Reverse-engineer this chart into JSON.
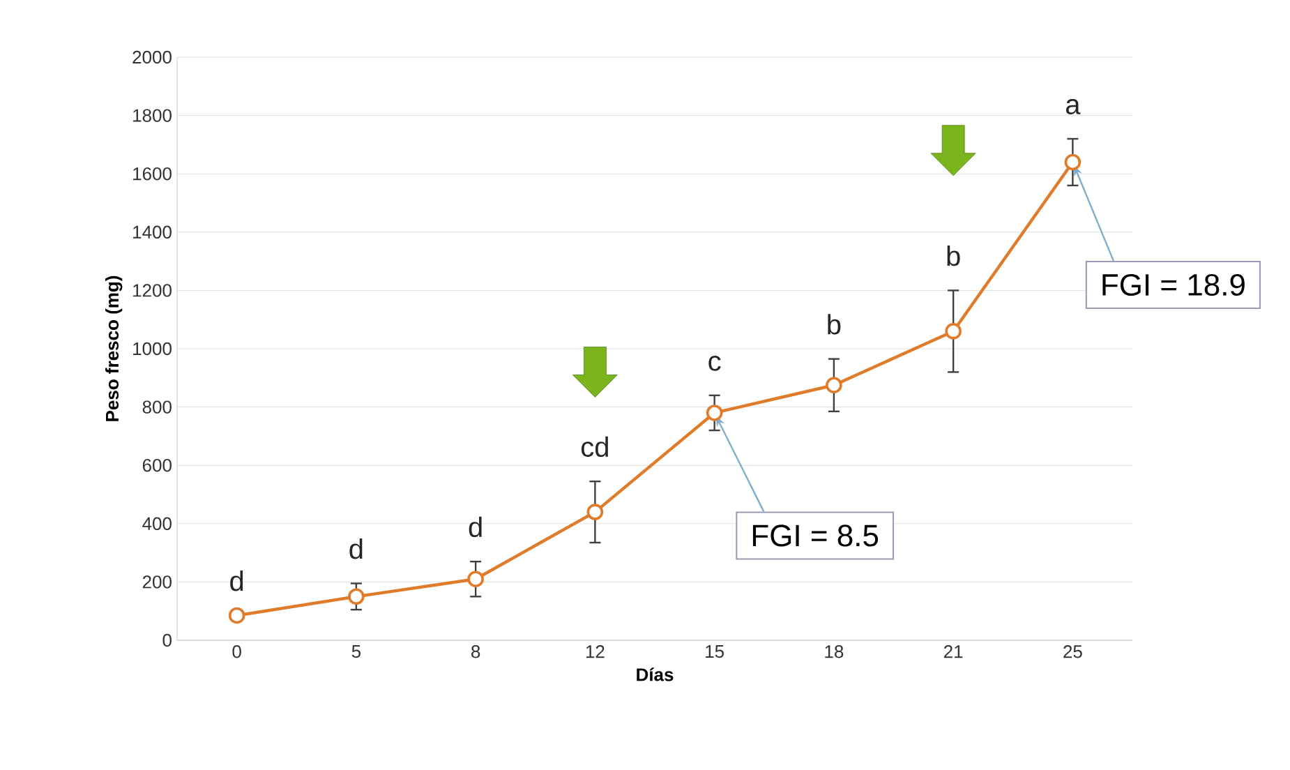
{
  "chart_data": {
    "type": "line",
    "xlabel": "Días",
    "ylabel": "Peso fresco (mg)",
    "categories": [
      "0",
      "5",
      "8",
      "12",
      "15",
      "18",
      "21",
      "25"
    ],
    "series": [
      {
        "color": "#e07b29",
        "values": [
          85,
          150,
          210,
          440,
          780,
          875,
          1060,
          1640
        ],
        "errors": [
          null,
          45,
          60,
          105,
          60,
          90,
          140,
          80
        ],
        "value_labels": [
          "d",
          "d",
          "d",
          "cd",
          "c",
          "b",
          "b",
          "a"
        ]
      }
    ],
    "ylim": [
      0,
      2000
    ],
    "yticks": [
      0,
      200,
      400,
      600,
      800,
      1000,
      1200,
      1400,
      1600,
      1800,
      2000
    ],
    "grid": "y",
    "marker": "circle",
    "line_style": "solid",
    "annotations": [
      {
        "text": "FGI = 8.5",
        "x": "15",
        "y": 780
      },
      {
        "text": "FGI = 18.9",
        "x": "25",
        "y": 1640
      }
    ]
  }
}
